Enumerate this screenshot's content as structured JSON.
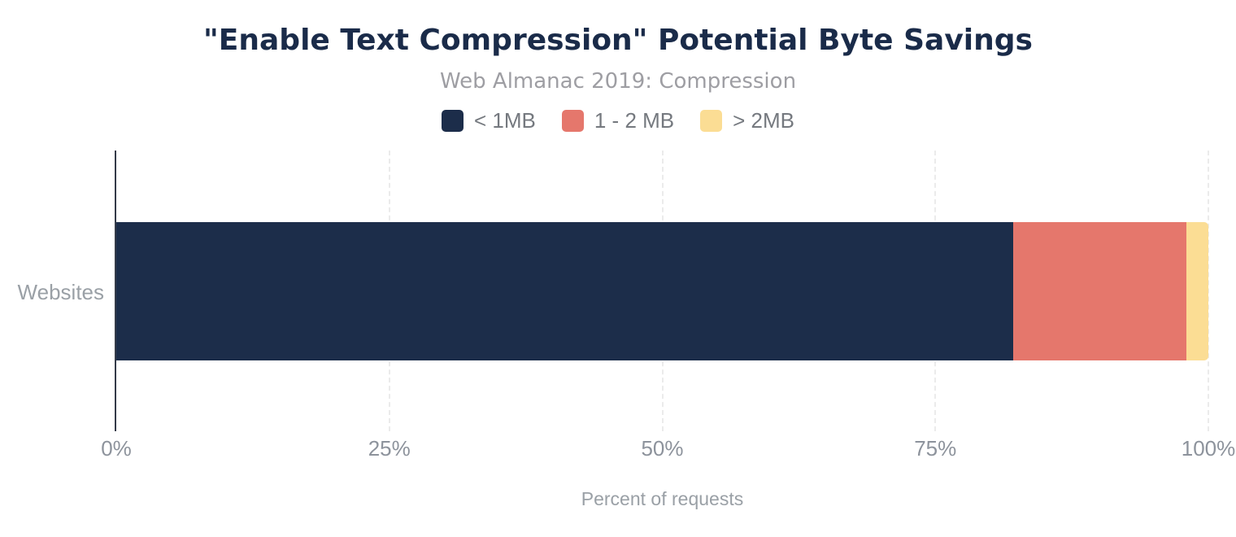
{
  "chart_data": {
    "type": "bar",
    "orientation": "horizontal-stacked",
    "title": "\"Enable Text Compression\" Potential Byte Savings",
    "subtitle": "Web Almanac 2019: Compression",
    "xlabel": "Percent of requests",
    "categories": [
      "Websites"
    ],
    "series": [
      {
        "name": "< 1MB",
        "values": [
          82.1
        ],
        "color": "#1c2d4a"
      },
      {
        "name": "1 - 2 MB",
        "values": [
          15.9
        ],
        "color": "#e5776c"
      },
      {
        "name": "> 2MB",
        "values": [
          2.0
        ],
        "color": "#fbdd94"
      }
    ],
    "xlim": [
      0,
      100
    ],
    "x_ticks": [
      0,
      25,
      50,
      75,
      100
    ],
    "x_tick_suffix": "%",
    "grid": "vertical-dashed",
    "legend_position": "top"
  },
  "colors": {
    "background": "#ffffff",
    "title": "#1a2b49",
    "subtitle": "#9e9ea3",
    "axis_line": "#343b49",
    "gridline": "#ebebeb",
    "tick_text": "#8d939c",
    "label_text": "#9aa0a6"
  }
}
